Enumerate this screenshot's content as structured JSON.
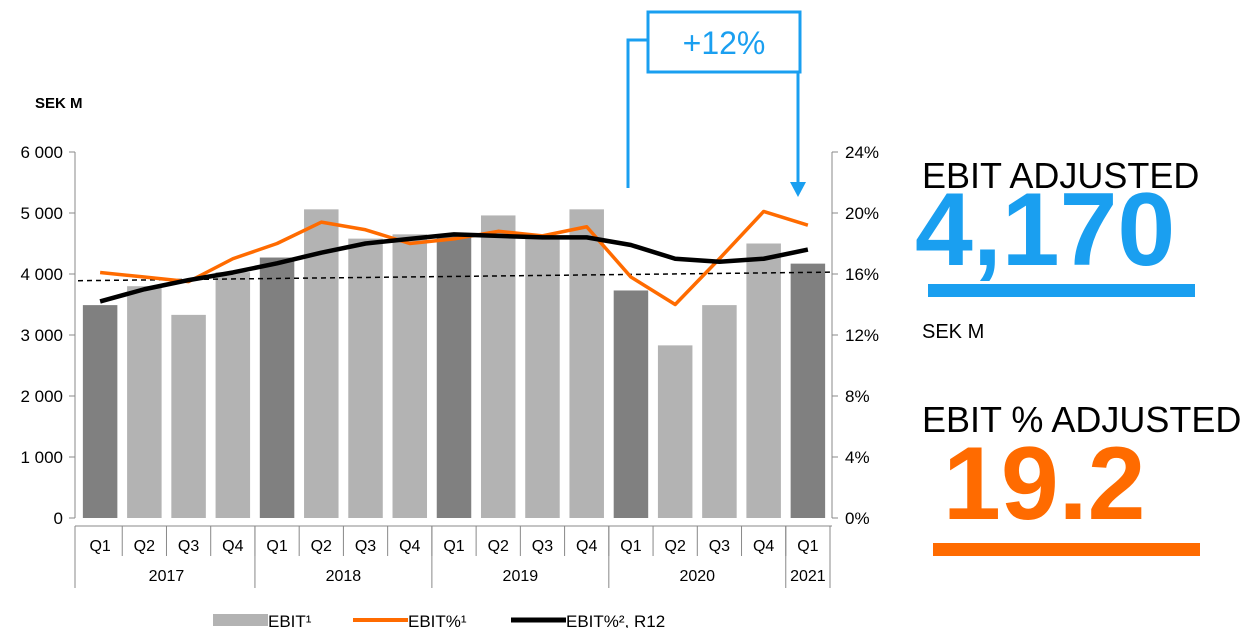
{
  "chart_data": {
    "type": "bar",
    "y_label": "SEK M",
    "categories": [
      "Q1",
      "Q2",
      "Q3",
      "Q4",
      "Q1",
      "Q2",
      "Q3",
      "Q4",
      "Q1",
      "Q2",
      "Q3",
      "Q4",
      "Q1",
      "Q2",
      "Q3",
      "Q4",
      "Q1"
    ],
    "groups": [
      {
        "name": "2017",
        "size": 4
      },
      {
        "name": "2018",
        "size": 4
      },
      {
        "name": "2019",
        "size": 4
      },
      {
        "name": "2020",
        "size": 4
      },
      {
        "name": "2021",
        "size": 1
      }
    ],
    "series": [
      {
        "name": "EBIT¹",
        "type": "bar",
        "color": "#b3b3b3",
        "colors": [
          "#808080",
          "#b3b3b3",
          "#b3b3b3",
          "#b3b3b3",
          "#808080",
          "#b3b3b3",
          "#b3b3b3",
          "#b3b3b3",
          "#808080",
          "#b3b3b3",
          "#b3b3b3",
          "#b3b3b3",
          "#808080",
          "#b3b3b3",
          "#b3b3b3",
          "#b3b3b3",
          "#808080"
        ],
        "values": [
          3490,
          3800,
          3330,
          4030,
          4270,
          5060,
          4580,
          4650,
          4620,
          4960,
          4620,
          5060,
          3730,
          2830,
          3490,
          4500,
          4170
        ]
      },
      {
        "name": "EBIT%¹",
        "type": "line",
        "axis": "y2",
        "color": "#ff6b00",
        "values": [
          16.1,
          15.8,
          15.5,
          17.0,
          18.0,
          19.4,
          18.9,
          18.0,
          18.3,
          18.8,
          18.5,
          19.1,
          15.8,
          14.0,
          17.0,
          20.1,
          19.2
        ]
      },
      {
        "name": "EBIT%², R12",
        "type": "line",
        "axis": "y2",
        "color": "#000000",
        "values": [
          14.2,
          15.0,
          15.6,
          16.1,
          16.7,
          17.4,
          18.0,
          18.3,
          18.6,
          18.5,
          18.4,
          18.4,
          17.9,
          17.0,
          16.8,
          17.0,
          17.6
        ]
      }
    ],
    "trendline": [
      3890,
      4030
    ],
    "ylim": [
      0,
      6000
    ],
    "yticks": [
      0,
      {
        "value": 1000,
        "label": "1 000"
      },
      {
        "value": 2000,
        "label": "2 000"
      },
      {
        "value": 3000,
        "label": "3 000"
      },
      {
        "value": 4000,
        "label": "4 000"
      },
      {
        "value": 5000,
        "label": "5 000"
      },
      {
        "value": 6000,
        "label": "6 000"
      }
    ],
    "y2lim": [
      0,
      24
    ],
    "y2ticks": [
      {
        "value": 0,
        "label": "0%"
      },
      {
        "value": 4,
        "label": "4%"
      },
      {
        "value": 8,
        "label": "8%"
      },
      {
        "value": 12,
        "label": "12%"
      },
      {
        "value": 16,
        "label": "16%"
      },
      {
        "value": 20,
        "label": "20%"
      },
      {
        "value": 24,
        "label": "24%"
      }
    ],
    "annotation": "+12%"
  },
  "kpis": [
    {
      "title": "EBIT ADJUSTED",
      "value": "4,170",
      "unit": "SEK M",
      "color": "#1a9ff0"
    },
    {
      "title": "EBIT % ADJUSTED",
      "value": "19.2",
      "color": "#ff6b00"
    }
  ]
}
